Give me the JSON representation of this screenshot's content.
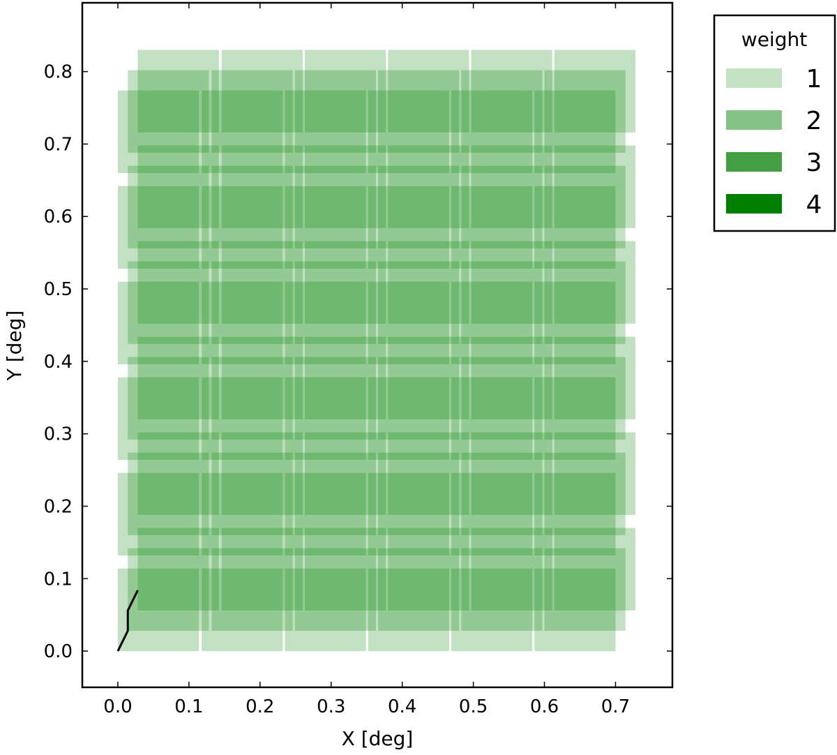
{
  "chart_data": {
    "type": "heatmap",
    "title": "",
    "xlabel": "X [deg]",
    "ylabel": "Y [deg]",
    "xlim": [
      -0.05,
      0.78
    ],
    "ylim": [
      -0.05,
      0.895
    ],
    "xticks": [
      "0.0",
      "0.1",
      "0.2",
      "0.3",
      "0.4",
      "0.5",
      "0.6",
      "0.7"
    ],
    "xtick_values": [
      0.0,
      0.1,
      0.2,
      0.3,
      0.4,
      0.5,
      0.6,
      0.7
    ],
    "yticks": [
      "0.0",
      "0.1",
      "0.2",
      "0.3",
      "0.4",
      "0.5",
      "0.6",
      "0.7",
      "0.8"
    ],
    "ytick_values": [
      0.0,
      0.1,
      0.2,
      0.3,
      0.4,
      0.5,
      0.6,
      0.7,
      0.8
    ],
    "grid": false,
    "legend_placement": "outside-right-top",
    "legend": {
      "title": "weight",
      "entries": [
        {
          "label": "1",
          "color": "#c3e3c3"
        },
        {
          "label": "2",
          "color": "#85c285"
        },
        {
          "label": "3",
          "color": "#42a042"
        },
        {
          "label": "4",
          "color": "#008000"
        }
      ]
    },
    "dither": {
      "offsets": [
        [
          0.0,
          0.0
        ],
        [
          0.014,
          0.028
        ],
        [
          0.028,
          0.056
        ]
      ],
      "chip_x0": [
        0.0,
        0.118,
        0.235,
        0.352,
        0.469,
        0.586
      ],
      "chip_width": 0.114,
      "chip_y0": [
        0.0,
        0.132,
        0.264,
        0.396,
        0.528,
        0.66
      ],
      "chip_height": 0.114
    },
    "dither_path": {
      "x": [
        0.0,
        0.014,
        0.014,
        0.028
      ],
      "y": [
        0.0,
        0.028,
        0.056,
        0.084
      ]
    }
  }
}
